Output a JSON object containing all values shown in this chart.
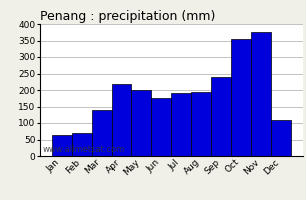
{
  "title": "Penang : precipitation (mm)",
  "months": [
    "Jan",
    "Feb",
    "Mar",
    "Apr",
    "May",
    "Jun",
    "Jul",
    "Aug",
    "Sep",
    "Oct",
    "Nov",
    "Dec"
  ],
  "values": [
    65,
    70,
    140,
    218,
    200,
    175,
    190,
    195,
    240,
    355,
    375,
    110
  ],
  "bar_color": "#0000dd",
  "bar_edge_color": "#000000",
  "ylim": [
    0,
    400
  ],
  "yticks": [
    0,
    50,
    100,
    150,
    200,
    250,
    300,
    350,
    400
  ],
  "background_color": "#f0f0e8",
  "plot_bg_color": "#ffffff",
  "grid_color": "#aaaaaa",
  "watermark": "www.allmetsat.com",
  "title_fontsize": 9,
  "tick_fontsize": 6.5,
  "watermark_fontsize": 6,
  "bar_width": 1.0
}
